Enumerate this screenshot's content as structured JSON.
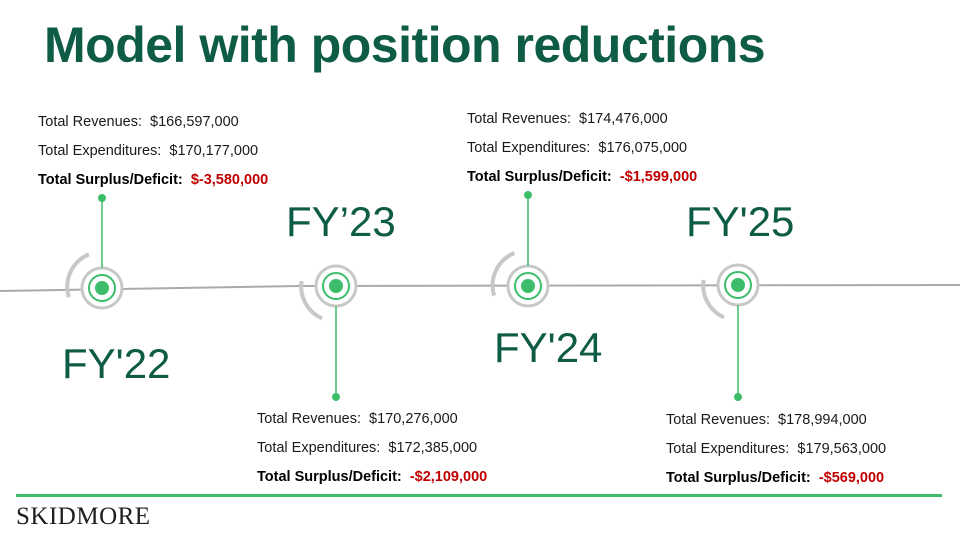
{
  "title": "Model with position reductions",
  "logo_text": "SKIDMORE",
  "colors": {
    "title": "#0e5c45",
    "accent_green": "#3dbd6a",
    "deficit_red": "#c00000",
    "timeline_gray": "#aaaaaa"
  },
  "years": [
    {
      "label": "FY'22",
      "revenues_label": "Total Revenues:",
      "revenues": "$166,597,000",
      "expenditures_label": "Total Expenditures:",
      "expenditures": "$170,177,000",
      "surplus_label": "Total Surplus/Deficit:",
      "surplus": "$-3,580,000"
    },
    {
      "label": "FY’23",
      "revenues_label": "Total Revenues:",
      "revenues": "$170,276,000",
      "expenditures_label": "Total Expenditures:",
      "expenditures": "$172,385,000",
      "surplus_label": "Total Surplus/Deficit:",
      "surplus": "-$2,109,000"
    },
    {
      "label": "FY'24",
      "revenues_label": "Total Revenues:",
      "revenues": "$174,476,000",
      "expenditures_label": "Total Expenditures:",
      "expenditures": "$176,075,000",
      "surplus_label": "Total Surplus/Deficit:",
      "surplus": "-$1,599,000"
    },
    {
      "label": "FY'25",
      "revenues_label": "Total Revenues:",
      "revenues": "$178,994,000",
      "expenditures_label": "Total Expenditures:",
      "expenditures": "$179,563,000",
      "surplus_label": "Total Surplus/Deficit:",
      "surplus": "-$569,000"
    }
  ]
}
